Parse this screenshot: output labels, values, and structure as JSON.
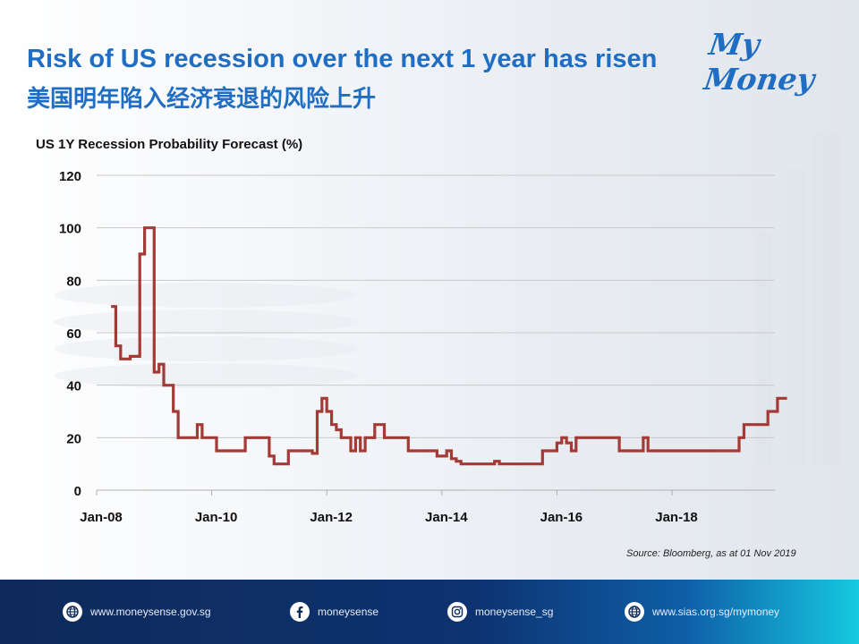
{
  "header": {
    "title_en": "Risk of US recession over the next 1 year has risen",
    "title_zh": "美国明年陷入经济衰退的风险上升",
    "brand": "My Money"
  },
  "source": "Source:  Bloomberg, as at 01 Nov 2019",
  "footer": {
    "links": [
      {
        "text": "www.moneysense.gov.sg",
        "icon": "globe-icon"
      },
      {
        "text": "moneysense",
        "icon": "facebook-icon"
      },
      {
        "text": "moneysense_sg",
        "icon": "instagram-icon"
      },
      {
        "text": "www.sias.org.sg/mymoney",
        "icon": "globe-icon"
      }
    ]
  },
  "colors": {
    "title": "#1f6ec3",
    "line": "#a33a35",
    "grid": "#c8c8c8"
  },
  "chart_data": {
    "type": "line",
    "title": "US 1Y Recession Probability Forecast (%)",
    "xlabel": "",
    "ylabel": "",
    "ylim": [
      0,
      120
    ],
    "yticks": [
      0,
      20,
      40,
      60,
      80,
      100,
      120
    ],
    "xlim": [
      "2008-01",
      "2019-11"
    ],
    "xticks": [
      {
        "date": "2008-01",
        "label": "Jan-08"
      },
      {
        "date": "2010-01",
        "label": "Jan-10"
      },
      {
        "date": "2012-01",
        "label": "Jan-12"
      },
      {
        "date": "2014-01",
        "label": "Jan-14"
      },
      {
        "date": "2016-01",
        "label": "Jan-16"
      },
      {
        "date": "2018-01",
        "label": "Jan-18"
      }
    ],
    "grid": true,
    "step": true,
    "series": [
      {
        "points": [
          [
            "2008-04",
            70
          ],
          [
            "2008-05",
            55
          ],
          [
            "2008-06",
            50
          ],
          [
            "2008-08",
            51
          ],
          [
            "2008-10",
            90
          ],
          [
            "2008-11",
            100
          ],
          [
            "2009-01",
            45
          ],
          [
            "2009-02",
            48
          ],
          [
            "2009-03",
            40
          ],
          [
            "2009-05",
            30
          ],
          [
            "2009-06",
            20
          ],
          [
            "2009-10",
            25
          ],
          [
            "2009-11",
            20
          ],
          [
            "2010-02",
            15
          ],
          [
            "2010-08",
            20
          ],
          [
            "2011-01",
            13
          ],
          [
            "2011-02",
            10
          ],
          [
            "2011-05",
            15
          ],
          [
            "2011-10",
            14
          ],
          [
            "2011-11",
            30
          ],
          [
            "2011-12",
            35
          ],
          [
            "2012-01",
            30
          ],
          [
            "2012-02",
            25
          ],
          [
            "2012-03",
            23
          ],
          [
            "2012-04",
            20
          ],
          [
            "2012-06",
            15
          ],
          [
            "2012-07",
            20
          ],
          [
            "2012-08",
            15
          ],
          [
            "2012-09",
            20
          ],
          [
            "2012-11",
            25
          ],
          [
            "2013-01",
            20
          ],
          [
            "2013-06",
            15
          ],
          [
            "2013-12",
            13
          ],
          [
            "2014-02",
            15
          ],
          [
            "2014-03",
            12
          ],
          [
            "2014-04",
            11
          ],
          [
            "2014-05",
            10
          ],
          [
            "2014-12",
            11
          ],
          [
            "2015-01",
            10
          ],
          [
            "2015-10",
            15
          ],
          [
            "2016-01",
            18
          ],
          [
            "2016-02",
            20
          ],
          [
            "2016-03",
            18
          ],
          [
            "2016-04",
            15
          ],
          [
            "2016-05",
            20
          ],
          [
            "2017-02",
            15
          ],
          [
            "2017-07",
            20
          ],
          [
            "2017-08",
            15
          ],
          [
            "2019-03",
            20
          ],
          [
            "2019-04",
            25
          ],
          [
            "2019-09",
            30
          ],
          [
            "2019-11",
            35
          ],
          [
            "2020-01",
            35
          ]
        ]
      }
    ]
  }
}
